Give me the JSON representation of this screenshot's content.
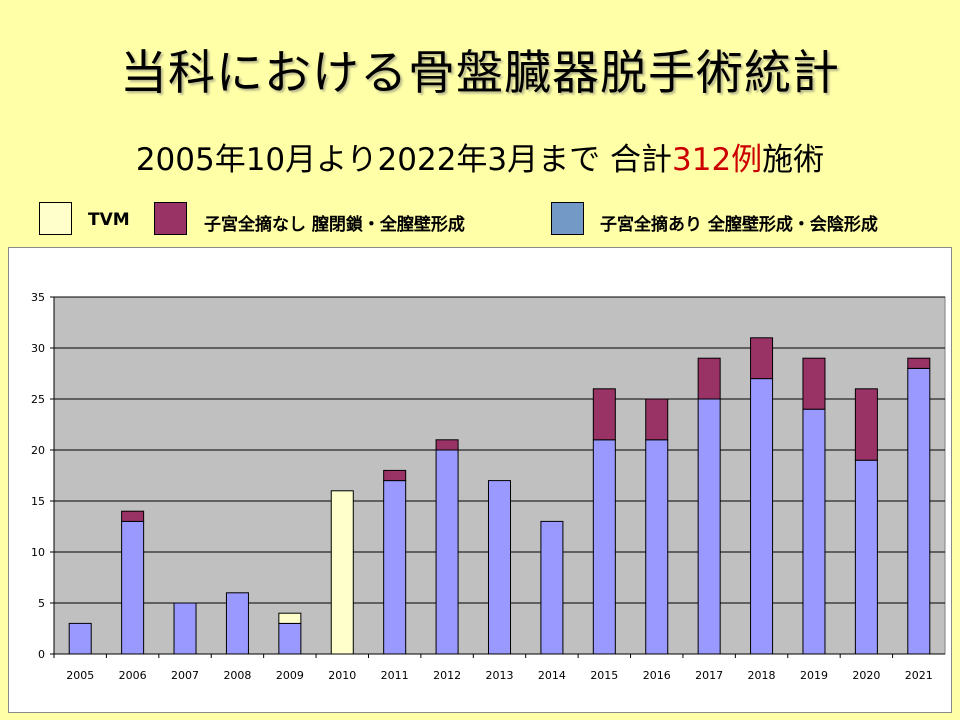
{
  "title": "当科における骨盤臓器脱手術統計",
  "subtitle": {
    "prefix": "2005年10月より2022年3月まで 合計",
    "count": "312例",
    "suffix": "施術"
  },
  "colors": {
    "background": "#ffffa8",
    "plot_area": "#c0c0c0",
    "tvm": "#ffffcc",
    "no_hysterectomy": "#993366",
    "hysterectomy": "#9999ff",
    "legend_hysterectomy": "#7399c6"
  },
  "chart_data": {
    "type": "bar",
    "stacked": true,
    "categories": [
      "2005",
      "2006",
      "2007",
      "2008",
      "2009",
      "2010",
      "2011",
      "2012",
      "2013",
      "2014",
      "2015",
      "2016",
      "2017",
      "2018",
      "2019",
      "2020",
      "2021"
    ],
    "series": [
      {
        "name": "子宮全摘あり 全膣壁形成・会陰形成",
        "values": [
          3,
          13,
          5,
          6,
          3,
          0,
          17,
          20,
          17,
          13,
          21,
          21,
          25,
          27,
          24,
          19,
          28
        ]
      },
      {
        "name": "TVM",
        "values": [
          0,
          0,
          0,
          0,
          1,
          16,
          0,
          0,
          0,
          0,
          0,
          0,
          0,
          0,
          0,
          0,
          0
        ]
      },
      {
        "name": "子宮全摘なし 膣閉鎖・全膣壁形成",
        "values": [
          0,
          1,
          0,
          0,
          0,
          0,
          1,
          1,
          0,
          0,
          5,
          4,
          4,
          4,
          5,
          7,
          1
        ]
      }
    ],
    "ylim": [
      0,
      35
    ],
    "yticks": [
      "0",
      "5",
      "10",
      "15",
      "20",
      "25",
      "30",
      "35"
    ],
    "grid": true,
    "legend_position": "top"
  }
}
